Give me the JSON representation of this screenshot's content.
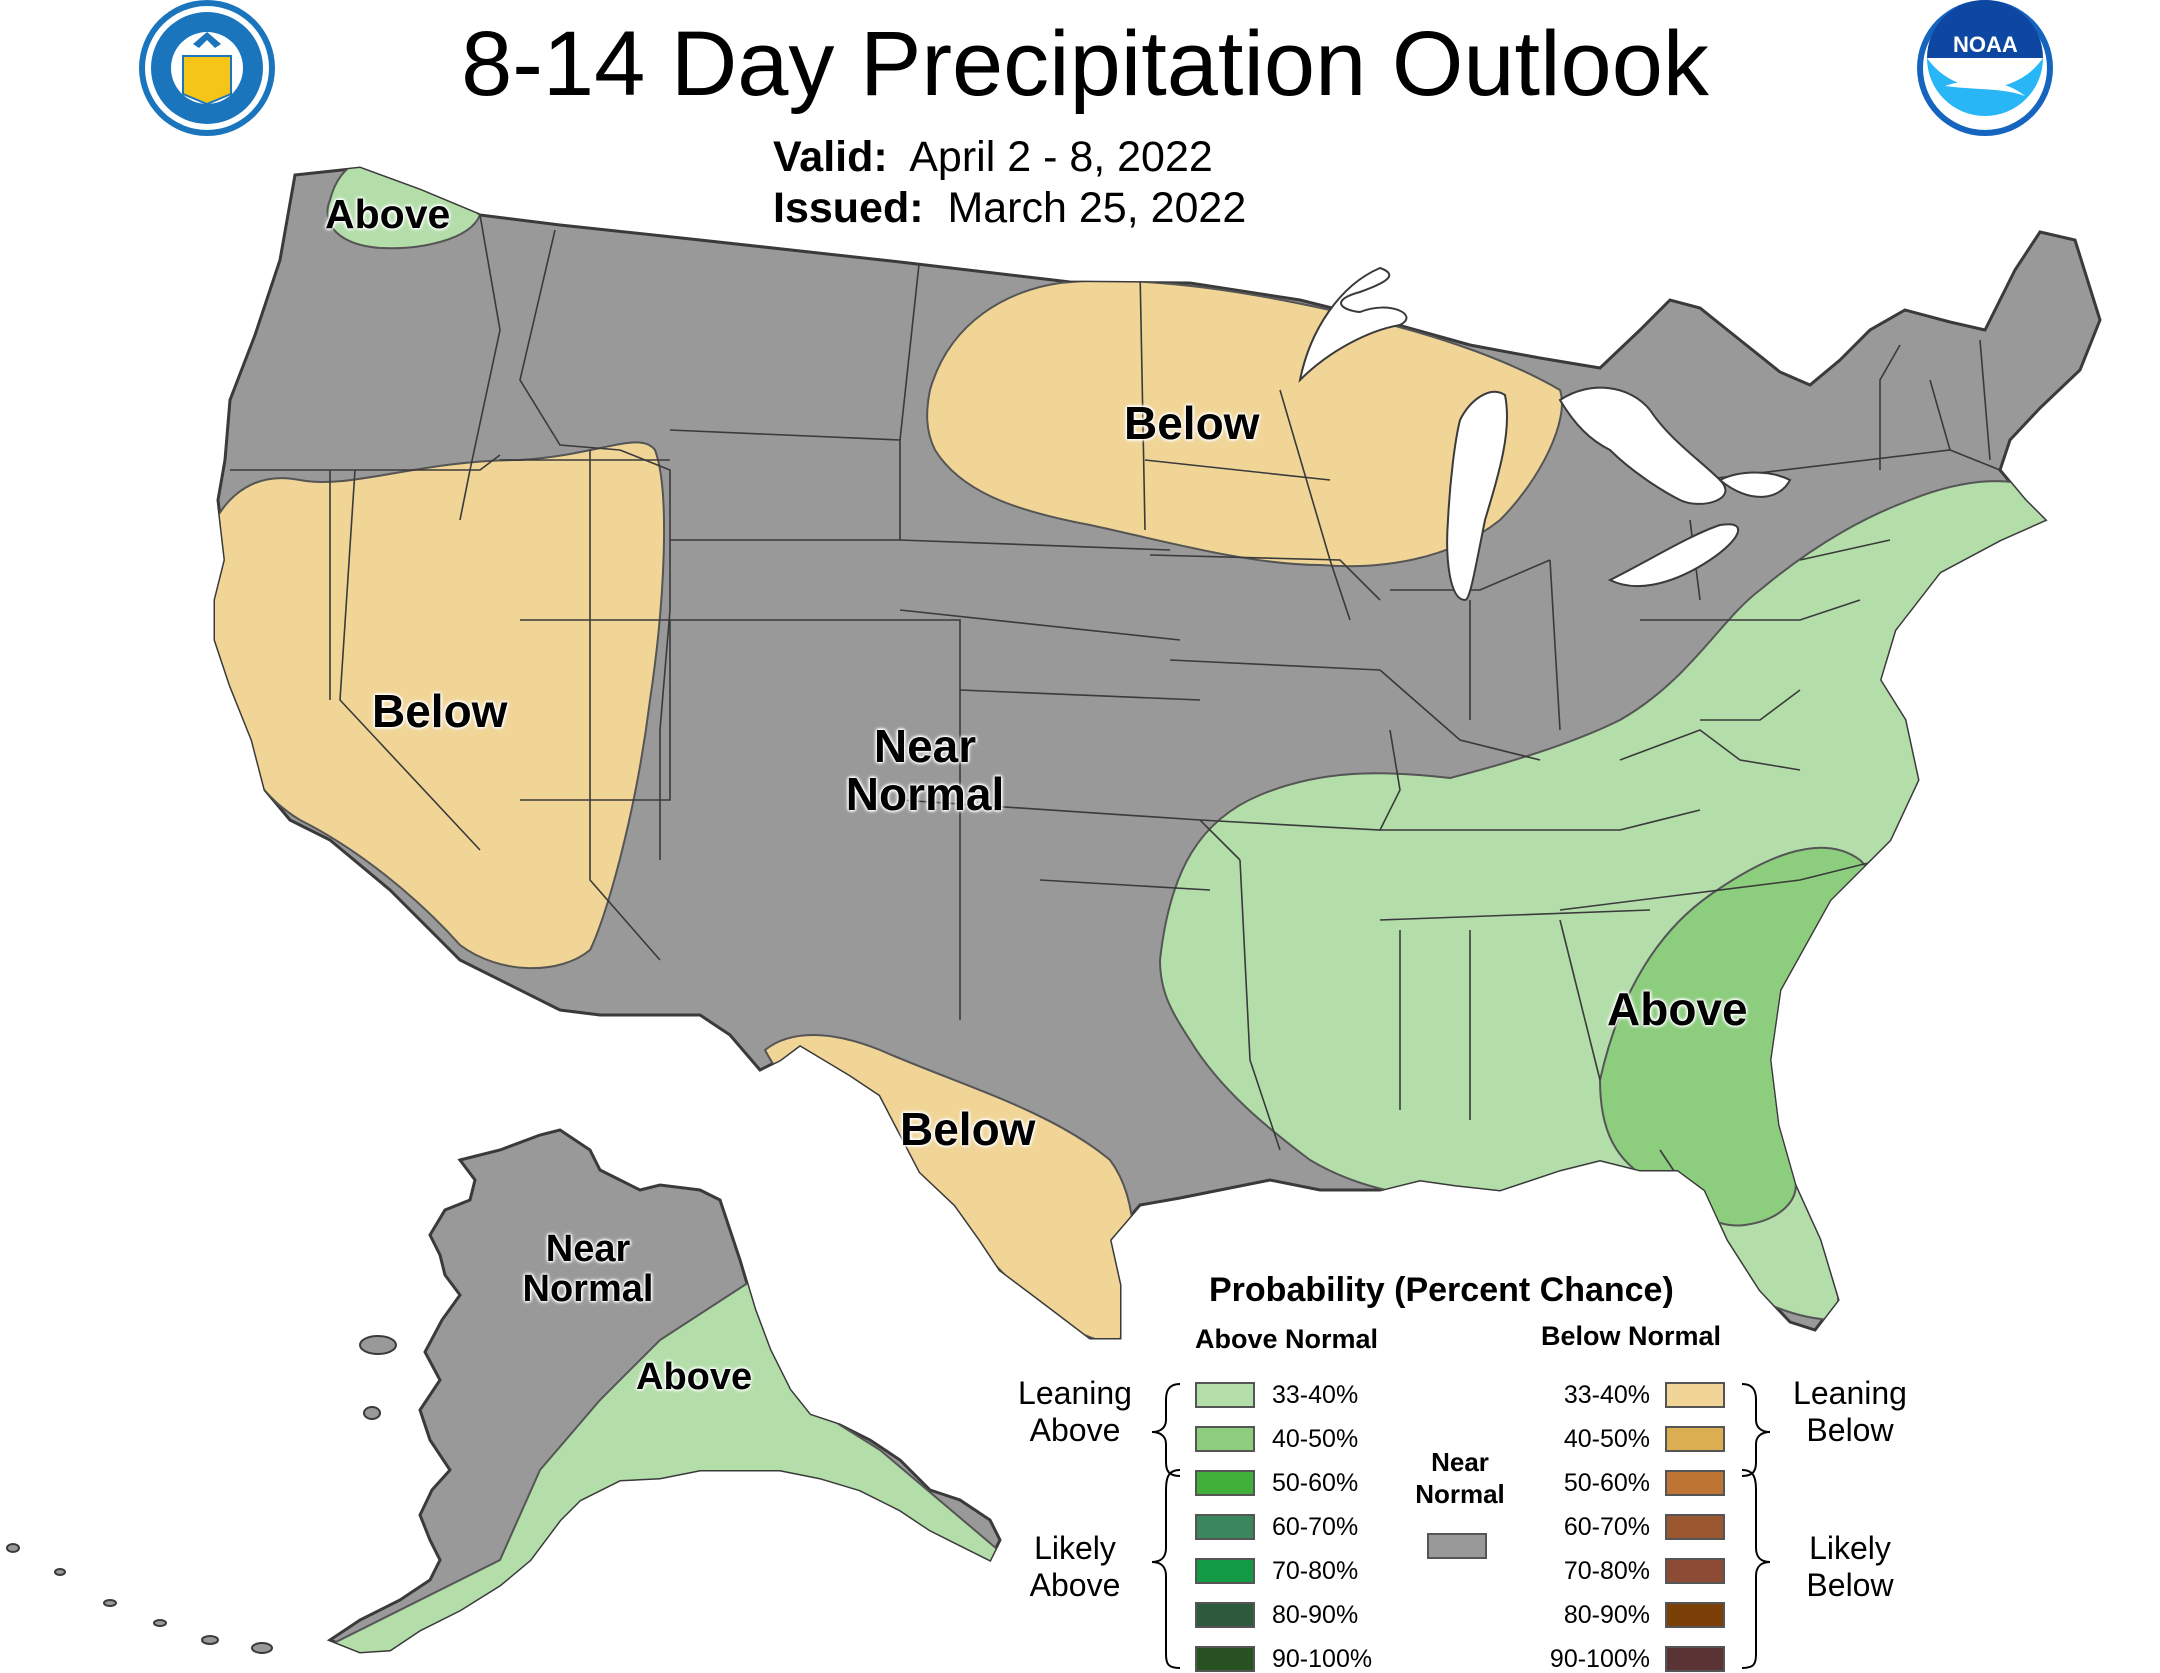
{
  "title": "8-14 Day Precipitation Outlook",
  "valid_label": "Valid:",
  "valid_value": "April 2 - 8, 2022",
  "issued_label": "Issued:",
  "issued_value": "March 25, 2022",
  "colors": {
    "near_normal": "#999999",
    "above_33_40": "#b3deaa",
    "above_40_50": "#8ccd7e",
    "below_33_40": "#f0d597",
    "background": "#ffffff",
    "state_border": "#3a3a3a"
  },
  "map_labels": {
    "wa_above": "Above",
    "great_basin_below": "Below",
    "north_below": "Below",
    "center_near_normal": "Near\nNormal",
    "texas_below": "Below",
    "southeast_above": "Above",
    "alaska_near_normal": "Near\nNormal",
    "alaska_above": "Above"
  },
  "legend": {
    "title": "Probability (Percent Chance)",
    "above_header": "Above Normal",
    "below_header": "Below Normal",
    "leaning_above": "Leaning\nAbove",
    "likely_above": "Likely\nAbove",
    "leaning_below": "Leaning\nBelow",
    "likely_below": "Likely\nBelow",
    "near_normal": "Near\nNormal",
    "above_bins": [
      {
        "label": "33-40%",
        "color": "#b3deaa"
      },
      {
        "label": "40-50%",
        "color": "#8ccd7e"
      },
      {
        "label": "50-60%",
        "color": "#3fb13b"
      },
      {
        "label": "60-70%",
        "color": "#3a865d"
      },
      {
        "label": "70-80%",
        "color": "#139a45"
      },
      {
        "label": "80-90%",
        "color": "#2d5a3c"
      },
      {
        "label": "90-100%",
        "color": "#285221"
      }
    ],
    "below_bins": [
      {
        "label": "33-40%",
        "color": "#f0d597"
      },
      {
        "label": "40-50%",
        "color": "#dcae52"
      },
      {
        "label": "50-60%",
        "color": "#be7432"
      },
      {
        "label": "60-70%",
        "color": "#9b5830"
      },
      {
        "label": "70-80%",
        "color": "#8d4a35"
      },
      {
        "label": "80-90%",
        "color": "#7b4008"
      },
      {
        "label": "90-100%",
        "color": "#5a3434"
      }
    ],
    "near_normal_color": "#999999"
  },
  "logos": {
    "left": "department-of-commerce-seal",
    "right": "noaa-logo",
    "noaa_text": "NOAA"
  }
}
